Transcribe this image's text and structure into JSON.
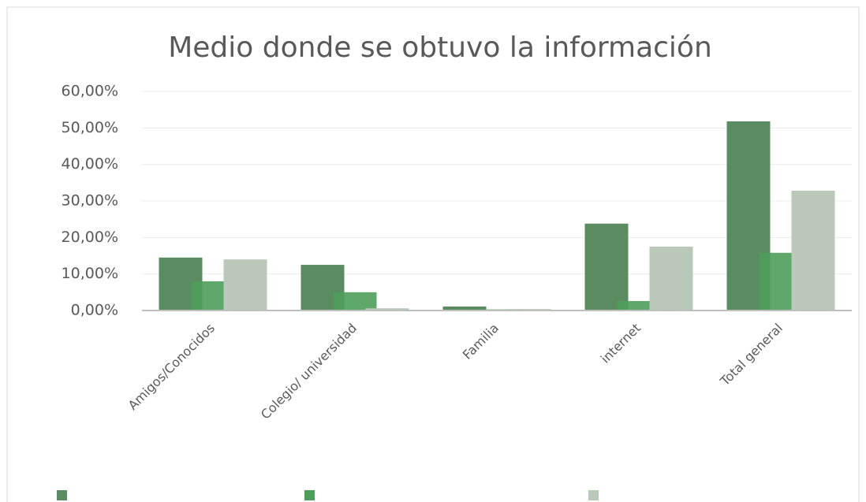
{
  "chart_data": {
    "type": "bar",
    "title": "Medio donde se obtuvo la información",
    "categories": [
      "Amigos/Conocidos",
      "Colegio/ universidad",
      "Familia",
      "internet",
      "Total general"
    ],
    "series": [
      {
        "color": "#5b8b60",
        "values": [
          14.5,
          12.5,
          1.1,
          23.8,
          51.8
        ]
      },
      {
        "color": "#4f9d5c",
        "values": [
          8.0,
          5.0,
          0.3,
          2.6,
          15.8
        ]
      },
      {
        "color": "#b9c8b9",
        "values": [
          14.0,
          0.6,
          0.4,
          17.5,
          32.8
        ]
      }
    ],
    "ylim": [
      0,
      60
    ],
    "yticks": [
      {
        "value": 0,
        "label": "0,00%"
      },
      {
        "value": 10,
        "label": "10,00%"
      },
      {
        "value": 20,
        "label": "20,00%"
      },
      {
        "value": 30,
        "label": "30,00%"
      },
      {
        "value": 40,
        "label": "40,00%"
      },
      {
        "value": 50,
        "label": "50,00%"
      },
      {
        "value": 60,
        "label": "60,00%"
      }
    ],
    "grid": true
  }
}
